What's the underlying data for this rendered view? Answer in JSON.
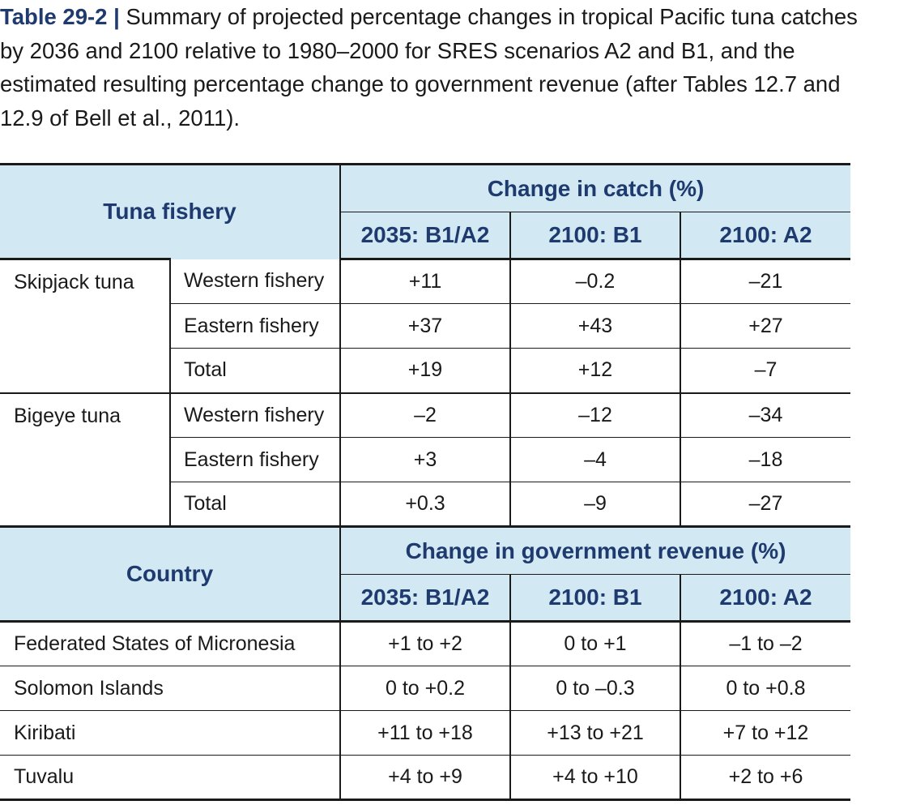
{
  "caption": {
    "label": "Table 29-2 |",
    "text": "Summary of projected percentage changes in tropical Pacific tuna catches by 2036 and 2100 relative to 1980–2000 for SRES scenarios A2 and B1, and the estimated resulting percentage change to government revenue (after Tables 12.7 and 12.9 of Bell et al., 2011)."
  },
  "catch_section": {
    "row_header": "Tuna fishery",
    "group_header": "Change in catch (%)",
    "columns": [
      "2035: B1/A2",
      "2100: B1",
      "2100: A2"
    ],
    "species": [
      {
        "name": "Skipjack tuna",
        "rows": [
          {
            "fishery": "Western fishery",
            "values": [
              "+11",
              "–0.2",
              "–21"
            ]
          },
          {
            "fishery": "Eastern fishery",
            "values": [
              "+37",
              "+43",
              "+27"
            ]
          },
          {
            "fishery": "Total",
            "values": [
              "+19",
              "+12",
              "–7"
            ]
          }
        ]
      },
      {
        "name": "Bigeye tuna",
        "rows": [
          {
            "fishery": "Western fishery",
            "values": [
              "–2",
              "–12",
              "–34"
            ]
          },
          {
            "fishery": "Eastern fishery",
            "values": [
              "+3",
              "–4",
              "–18"
            ]
          },
          {
            "fishery": "Total",
            "values": [
              "+0.3",
              "–9",
              "–27"
            ]
          }
        ]
      }
    ]
  },
  "revenue_section": {
    "row_header": "Country",
    "group_header": "Change in government revenue (%)",
    "columns": [
      "2035: B1/A2",
      "2100: B1",
      "2100: A2"
    ],
    "rows": [
      {
        "country": "Federated States of Micronesia",
        "values": [
          "+1 to +2",
          "0 to +1",
          "–1 to –2"
        ]
      },
      {
        "country": "Solomon Islands",
        "values": [
          "0 to +0.2",
          "0 to –0.3",
          "0 to +0.8"
        ]
      },
      {
        "country": "Kiribati",
        "values": [
          "+11 to +18",
          "+13 to +21",
          "+7 to +12"
        ]
      },
      {
        "country": "Tuvalu",
        "values": [
          "+4 to +9",
          "+4 to +10",
          "+2 to +6"
        ]
      }
    ]
  }
}
